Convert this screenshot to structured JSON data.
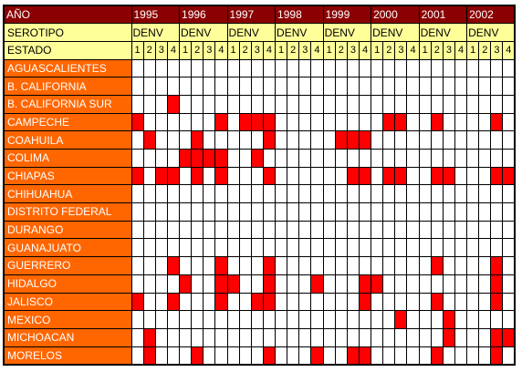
{
  "colors": {
    "header_dark": "#8b0000",
    "header_yellow": "#ffff99",
    "state_orange": "#ff6600",
    "mark_red": "#ff0000"
  },
  "header": {
    "year_label": "AÑO",
    "serotype_label": "SEROTIPO",
    "state_label": "ESTADO",
    "serotype_value": "DENV",
    "years": [
      "1995",
      "1996",
      "1997",
      "1998",
      "1999",
      "2000",
      "2001",
      "2002"
    ],
    "subcols": [
      "1",
      "2",
      "3",
      "4"
    ]
  },
  "rows": [
    {
      "name": "AGUASCALIENTES",
      "cells": "00000000000000000000000000000000"
    },
    {
      "name": "B. CALIFORNIA",
      "cells": "00000000000000000000000000000000"
    },
    {
      "name": "B. CALIFORNIA SUR",
      "cells": "00010000000000000000000000000000"
    },
    {
      "name": "CAMPECHE",
      "cells": "10000001011100000000011001000010"
    },
    {
      "name": "COAHUILA",
      "cells": "01000100000100000111000000000000"
    },
    {
      "name": "COLIMA",
      "cells": "00001111001000000000000000000000"
    },
    {
      "name": "CHIAPAS",
      "cells": "10110101000100000011011001100011"
    },
    {
      "name": "CHIHUAHUA",
      "cells": "00000000000000000000000000000000"
    },
    {
      "name": "DISTRITO FEDERAL",
      "cells": "00000000000000000000000000000000"
    },
    {
      "name": "DURANGO",
      "cells": "00000000000000000000000000000000"
    },
    {
      "name": "GUANAJUATO",
      "cells": "00000000000000000000000000000000"
    },
    {
      "name": "GUERRERO",
      "cells": "00010001000100000000000001000010"
    },
    {
      "name": "HIDALGO",
      "cells": "00001001100100010001100000000010"
    },
    {
      "name": "JALISCO",
      "cells": "10010001001100000001000001000010"
    },
    {
      "name": "MEXICO",
      "cells": "00000000000000000000001000100000"
    },
    {
      "name": "MICHOACAN",
      "cells": "01000000000000000000000000100011"
    },
    {
      "name": "MORELOS",
      "cells": "01000100000100010011000001000010"
    }
  ]
}
